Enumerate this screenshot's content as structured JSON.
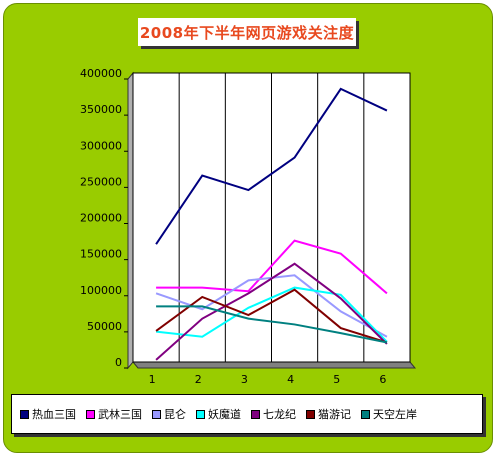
{
  "chart_data": {
    "type": "line",
    "title": "2008年下半年网页游戏关注度",
    "xlabel": "",
    "ylabel": "",
    "categories": [
      "1",
      "2",
      "3",
      "4",
      "5",
      "6"
    ],
    "ylim": [
      0,
      400000
    ],
    "yticks": [
      "0",
      "50000",
      "100000",
      "150000",
      "200000",
      "250000",
      "300000",
      "350000",
      "400000"
    ],
    "grid": "vertical",
    "legend_position": "bottom",
    "series": [
      {
        "name": "热血三国",
        "color": "#000080",
        "values": [
          163000,
          258000,
          238000,
          283000,
          378000,
          348000
        ]
      },
      {
        "name": "武林三国",
        "color": "#ff00ff",
        "values": [
          103000,
          103000,
          98000,
          168000,
          150000,
          95000
        ]
      },
      {
        "name": "昆仑",
        "color": "#9999ff",
        "values": [
          95000,
          73000,
          113000,
          120000,
          70000,
          35000
        ]
      },
      {
        "name": "妖魔道",
        "color": "#00ffff",
        "values": [
          42000,
          35000,
          75000,
          103000,
          93000,
          28000
        ]
      },
      {
        "name": "七龙纪",
        "color": "#800080",
        "values": [
          3000,
          60000,
          95000,
          136000,
          88000,
          25000
        ]
      },
      {
        "name": "猫游记",
        "color": "#800000",
        "values": [
          43000,
          90000,
          65000,
          100000,
          47000,
          27000
        ]
      },
      {
        "name": "天空左岸",
        "color": "#008080",
        "values": [
          77000,
          77000,
          60000,
          52000,
          40000,
          27000
        ]
      }
    ]
  }
}
